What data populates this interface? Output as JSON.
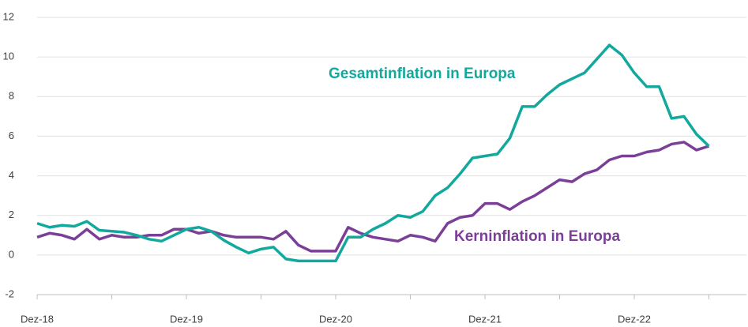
{
  "chart_data": {
    "type": "line",
    "categories": [
      "Dez-18",
      null,
      null,
      null,
      null,
      null,
      null,
      null,
      null,
      null,
      null,
      null,
      "Dez-19",
      null,
      null,
      null,
      null,
      null,
      null,
      null,
      null,
      null,
      null,
      null,
      "Dez-20",
      null,
      null,
      null,
      null,
      null,
      null,
      null,
      null,
      null,
      null,
      null,
      "Dez-21",
      null,
      null,
      null,
      null,
      null,
      null,
      null,
      null,
      null,
      null,
      null,
      "Dez-22",
      null,
      null,
      null,
      null,
      null,
      null
    ],
    "series": [
      {
        "name": "Gesamtinflation in Europa",
        "color": "#13a89e",
        "values": [
          1.6,
          1.4,
          1.5,
          1.45,
          1.7,
          1.25,
          1.2,
          1.15,
          1.0,
          0.8,
          0.7,
          1.0,
          1.3,
          1.4,
          1.2,
          0.75,
          0.4,
          0.1,
          0.3,
          0.4,
          -0.2,
          -0.3,
          -0.3,
          -0.3,
          -0.3,
          0.9,
          0.9,
          1.3,
          1.6,
          2.0,
          1.9,
          2.2,
          3.0,
          3.4,
          4.1,
          4.9,
          5.0,
          5.1,
          5.9,
          7.5,
          7.5,
          8.1,
          8.6,
          8.9,
          9.2,
          9.9,
          10.6,
          10.1,
          9.2,
          8.5,
          8.5,
          6.9,
          7.0,
          6.1,
          5.5
        ]
      },
      {
        "name": "Kerninflation in Europa",
        "color": "#7b3f98",
        "values": [
          0.9,
          1.1,
          1.0,
          0.8,
          1.3,
          0.8,
          1.0,
          0.9,
          0.9,
          1.0,
          1.0,
          1.3,
          1.3,
          1.1,
          1.2,
          1.0,
          0.9,
          0.9,
          0.9,
          0.8,
          1.2,
          0.5,
          0.2,
          0.2,
          0.2,
          1.4,
          1.1,
          0.9,
          0.8,
          0.7,
          1.0,
          0.9,
          0.7,
          1.6,
          1.9,
          2.0,
          2.6,
          2.6,
          2.3,
          2.7,
          3.0,
          3.4,
          3.8,
          3.7,
          4.1,
          4.3,
          4.8,
          5.0,
          5.0,
          5.2,
          5.3,
          5.6,
          5.7,
          5.3,
          5.5
        ]
      }
    ],
    "ylim": [
      -2,
      12
    ],
    "yticks": [
      -2,
      0,
      2,
      4,
      6,
      8,
      10,
      12
    ],
    "grid": true
  }
}
